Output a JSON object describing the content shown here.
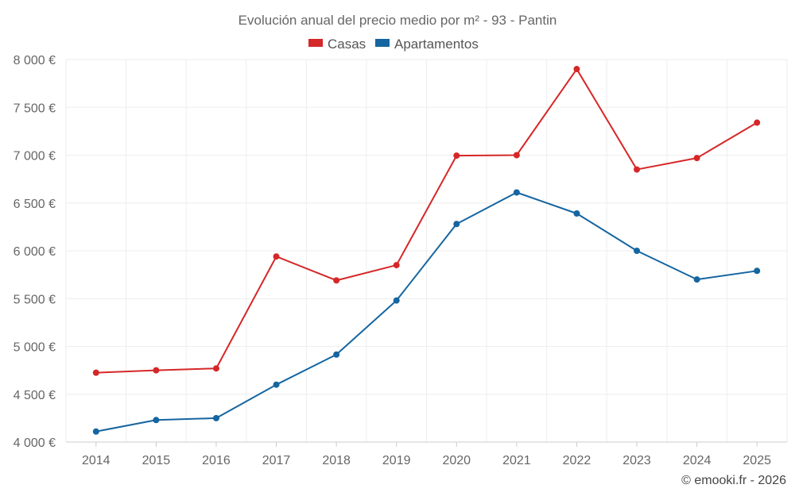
{
  "chart_data": {
    "type": "line",
    "title": "Evolución anual del precio medio por m² - 93 - Pantin",
    "categories": [
      "2014",
      "2015",
      "2016",
      "2017",
      "2018",
      "2019",
      "2020",
      "2021",
      "2022",
      "2023",
      "2024",
      "2025"
    ],
    "series": [
      {
        "name": "Casas",
        "color": "#d62728",
        "values": [
          4725,
          4750,
          4770,
          5940,
          5690,
          5850,
          6995,
          7000,
          7900,
          6850,
          6970,
          7340
        ]
      },
      {
        "name": "Apartamentos",
        "color": "#1565a0",
        "values": [
          4110,
          4230,
          4250,
          4600,
          4915,
          5480,
          6280,
          6610,
          6390,
          6000,
          5700,
          5790
        ]
      }
    ],
    "ylim": [
      4000,
      8000
    ],
    "yticks": [
      4000,
      4500,
      5000,
      5500,
      6000,
      6500,
      7000,
      7500,
      8000
    ],
    "ytick_labels": [
      "4 000 €",
      "4 500 €",
      "5 000 €",
      "5 500 €",
      "6 000 €",
      "6 500 €",
      "7 000 €",
      "7 500 €",
      "8 000 €"
    ],
    "xlabel": "",
    "ylabel": "",
    "legend_position": "top-center",
    "grid": true
  },
  "credit": "© emooki.fr - 2026"
}
